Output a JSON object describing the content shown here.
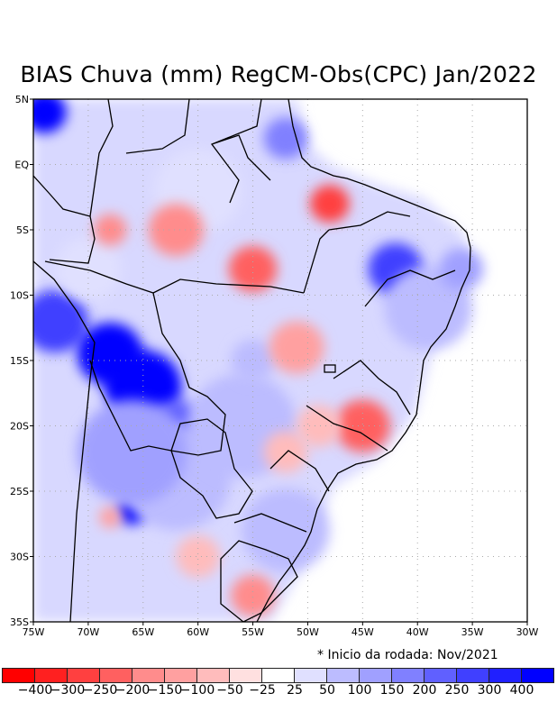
{
  "title": "BIAS Chuva (mm) RegCM-Obs(CPC) Jan/2022",
  "note": "* Inicio da rodada: Nov/2021",
  "map": {
    "lon_range": [
      -75,
      -30
    ],
    "lat_range": [
      -35,
      5
    ],
    "x_ticks": [
      "75W",
      "70W",
      "65W",
      "60W",
      "55W",
      "50W",
      "45W",
      "40W",
      "35W",
      "30W"
    ],
    "y_ticks": [
      "5N",
      "EQ",
      "5S",
      "10S",
      "15S",
      "20S",
      "25S",
      "30S",
      "35S"
    ],
    "blobs": [
      {
        "lon": -74,
        "lat": 4,
        "r": 2,
        "level": "blue400"
      },
      {
        "lon": -73,
        "lat": -12,
        "r": 3,
        "level": "blue300"
      },
      {
        "lon": -68,
        "lat": -14.5,
        "r": 3,
        "level": "blue400"
      },
      {
        "lon": -65,
        "lat": -17,
        "r": 3.5,
        "level": "blue400"
      },
      {
        "lon": -62,
        "lat": -20,
        "r": 2.5,
        "level": "blue250"
      },
      {
        "lon": -66,
        "lat": -26.5,
        "r": 1.3,
        "level": "blue400"
      },
      {
        "lon": -62,
        "lat": -24,
        "r": 5,
        "level": "blue100"
      },
      {
        "lon": -56,
        "lat": -20,
        "r": 5,
        "level": "blue100"
      },
      {
        "lon": -52,
        "lat": -28,
        "r": 4,
        "level": "blue100"
      },
      {
        "lon": -66,
        "lat": -22,
        "r": 5,
        "level": "blue150"
      },
      {
        "lon": -42,
        "lat": -8,
        "r": 2.5,
        "level": "blue300"
      },
      {
        "lon": -39,
        "lat": -11,
        "r": 4,
        "level": "blue100"
      },
      {
        "lon": -36,
        "lat": -8,
        "r": 2,
        "level": "blue150"
      },
      {
        "lon": -52,
        "lat": 2,
        "r": 2,
        "level": "blue200"
      },
      {
        "lon": -55,
        "lat": -15,
        "r": 2,
        "level": "blue100"
      },
      {
        "lon": -60,
        "lat": -2,
        "r": 4,
        "level": "blue50"
      },
      {
        "lon": -70,
        "lat": -8,
        "r": 3,
        "level": "blue50"
      },
      {
        "lon": -68,
        "lat": -5,
        "r": 1.5,
        "level": "red150"
      },
      {
        "lon": -62,
        "lat": -5,
        "r": 2.5,
        "level": "red150"
      },
      {
        "lon": -55,
        "lat": -8,
        "r": 2.2,
        "level": "red200"
      },
      {
        "lon": -48,
        "lat": -3,
        "r": 1.8,
        "level": "red250"
      },
      {
        "lon": -45,
        "lat": -20,
        "r": 2.5,
        "level": "red200"
      },
      {
        "lon": -55,
        "lat": -33,
        "r": 2,
        "level": "red150"
      },
      {
        "lon": -51,
        "lat": -14,
        "r": 2.5,
        "level": "red100"
      },
      {
        "lon": -52,
        "lat": -22,
        "r": 2,
        "level": "red50"
      },
      {
        "lon": -68,
        "lat": -27,
        "r": 1,
        "level": "red100"
      },
      {
        "lon": -60,
        "lat": -30,
        "r": 2,
        "level": "red50"
      },
      {
        "lon": -49,
        "lat": -20,
        "r": 2,
        "level": "red50"
      }
    ]
  },
  "legend": {
    "colors": [
      "#ff0000",
      "#ff2020",
      "#ff4040",
      "#ff6060",
      "#ff8c8c",
      "#ffa0a0",
      "#ffbcbc",
      "#ffe0e0",
      "#ffffff",
      "#e0e0ff",
      "#bcbcff",
      "#a0a0ff",
      "#8080ff",
      "#6060ff",
      "#4040ff",
      "#2020ff",
      "#0000ff"
    ],
    "labels": [
      "-400",
      "-300",
      "-250",
      "-200",
      "-150",
      "-100",
      "-50",
      "-25",
      "25",
      "50",
      "100",
      "150",
      "200",
      "250",
      "300",
      "400"
    ],
    "level_colors": {
      "red250": "#ff4040",
      "red200": "#ff6060",
      "red150": "#ff8c8c",
      "red100": "#ffa0a0",
      "red50": "#ffbcbc",
      "blue50": "#e0e0ff",
      "blue100": "#bcbcff",
      "blue150": "#a0a0ff",
      "blue200": "#8080ff",
      "blue250": "#6060ff",
      "blue300": "#4040ff",
      "blue400": "#0000ff"
    }
  }
}
